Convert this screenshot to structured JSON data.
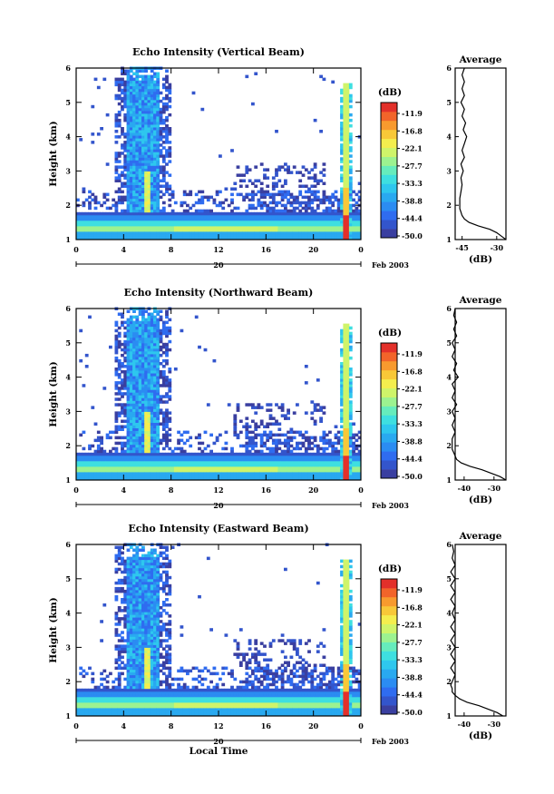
{
  "palette": [
    "#3a3fa0",
    "#3355cc",
    "#2f6cf0",
    "#2b8cf2",
    "#29a9f0",
    "#2ec7ee",
    "#3edfe0",
    "#66ecbc",
    "#9cf290",
    "#cff46a",
    "#f4ee4e",
    "#f8c838",
    "#f89a2e",
    "#f2642a",
    "#e3302a"
  ],
  "chart_data": [
    {
      "type": "heatmap",
      "title": "Echo Intensity (Vertical Beam)",
      "xlabel": "",
      "ylabel": "Height (km)",
      "x_ticks": [
        "0",
        "4",
        "8",
        "12",
        "16",
        "20",
        "0"
      ],
      "x_range_hours": [
        0,
        24
      ],
      "y_ticks": [
        "1",
        "2",
        "3",
        "4",
        "5",
        "6"
      ],
      "ylim_km": [
        1,
        6
      ],
      "date_tick": "20",
      "date_label": "Feb 2003",
      "colorbar": {
        "unit": "(dB)",
        "levels": [
          "-11.9",
          "-16.8",
          "-22.1",
          "-27.7",
          "-33.3",
          "-38.8",
          "-44.4",
          "-50.0"
        ]
      },
      "average_profile": {
        "title": "Average",
        "xlabel": "(dB)",
        "x_ticks": [
          "-45",
          "-30"
        ],
        "ylim_km": [
          1,
          6
        ],
        "height_km": [
          1.0,
          1.1,
          1.2,
          1.3,
          1.4,
          1.5,
          1.6,
          1.7,
          1.8,
          1.9,
          2.0,
          2.2,
          2.4,
          2.6,
          2.8,
          3.0,
          3.2,
          3.4,
          3.6,
          3.8,
          4.0,
          4.2,
          4.4,
          4.6,
          4.8,
          5.0,
          5.2,
          5.4,
          5.6,
          5.8,
          6.0
        ],
        "value_db": [
          -26,
          -28,
          -30,
          -33,
          -38,
          -42,
          -44,
          -45,
          -45.5,
          -46,
          -46,
          -46,
          -45.5,
          -45,
          -45.5,
          -44.5,
          -45.5,
          -44,
          -45,
          -44,
          -43,
          -44.5,
          -43.5,
          -45,
          -44,
          -45.5,
          -44,
          -45,
          -44,
          -45,
          -44
        ]
      }
    },
    {
      "type": "heatmap",
      "title": "Echo Intensity (Northward Beam)",
      "xlabel": "",
      "ylabel": "Height (km)",
      "x_ticks": [
        "0",
        "4",
        "8",
        "12",
        "16",
        "20",
        "0"
      ],
      "x_range_hours": [
        0,
        24
      ],
      "y_ticks": [
        "1",
        "2",
        "3",
        "4",
        "5",
        "6"
      ],
      "ylim_km": [
        1,
        6
      ],
      "date_tick": "20",
      "date_label": "Feb 2003",
      "colorbar": {
        "unit": "(dB)",
        "levels": [
          "-11.9",
          "-16.8",
          "-22.1",
          "-27.7",
          "-33.3",
          "-38.8",
          "-44.4",
          "-50.0"
        ]
      },
      "average_profile": {
        "title": "Average",
        "xlabel": "(dB)",
        "x_ticks": [
          "-40",
          "-30"
        ],
        "ylim_km": [
          1,
          6
        ],
        "height_km": [
          1.0,
          1.1,
          1.2,
          1.3,
          1.4,
          1.5,
          1.6,
          1.7,
          1.8,
          1.9,
          2.0,
          2.2,
          2.4,
          2.6,
          2.8,
          3.0,
          3.2,
          3.4,
          3.6,
          3.8,
          4.0,
          4.2,
          4.4,
          4.6,
          4.8,
          5.0,
          5.2,
          5.4,
          5.6,
          5.8,
          6.0
        ],
        "value_db": [
          -26,
          -28,
          -31,
          -34,
          -38,
          -41,
          -42.5,
          -43,
          -43.5,
          -44,
          -44,
          -44,
          -43,
          -44,
          -43,
          -44,
          -42.5,
          -44,
          -43,
          -44,
          -42,
          -43.5,
          -42.5,
          -44,
          -43,
          -44,
          -42.5,
          -43.5,
          -42.5,
          -43.5,
          -43
        ]
      }
    },
    {
      "type": "heatmap",
      "title": "Echo Intensity (Eastward Beam)",
      "xlabel": "Local Time",
      "ylabel": "Height (km)",
      "x_ticks": [
        "0",
        "4",
        "8",
        "12",
        "16",
        "20",
        "0"
      ],
      "x_range_hours": [
        0,
        24
      ],
      "y_ticks": [
        "1",
        "2",
        "3",
        "4",
        "5",
        "6"
      ],
      "ylim_km": [
        1,
        6
      ],
      "date_tick": "20",
      "date_label": "Feb 2003",
      "colorbar": {
        "unit": "(dB)",
        "levels": [
          "-11.9",
          "-16.8",
          "-22.1",
          "-27.7",
          "-33.3",
          "-38.8",
          "-44.4",
          "-50.0"
        ]
      },
      "average_profile": {
        "title": "Average",
        "xlabel": "(dB)",
        "x_ticks": [
          "-40",
          "-30"
        ],
        "ylim_km": [
          1,
          6
        ],
        "height_km": [
          1.0,
          1.1,
          1.2,
          1.3,
          1.4,
          1.5,
          1.6,
          1.7,
          1.8,
          1.9,
          2.0,
          2.2,
          2.4,
          2.6,
          2.8,
          3.0,
          3.2,
          3.4,
          3.6,
          3.8,
          4.0,
          4.2,
          4.4,
          4.6,
          4.8,
          5.0,
          5.2,
          5.4,
          5.6,
          5.8,
          6.0
        ],
        "value_db": [
          -27,
          -29,
          -32,
          -35,
          -39,
          -41.5,
          -43,
          -44,
          -44,
          -44.5,
          -44,
          -43,
          -44.5,
          -43,
          -44.5,
          -43,
          -44.5,
          -43,
          -44.5,
          -43,
          -44,
          -43,
          -44.5,
          -43,
          -44.5,
          -43,
          -44.5,
          -43,
          -44,
          -43.5,
          -44
        ]
      }
    }
  ]
}
